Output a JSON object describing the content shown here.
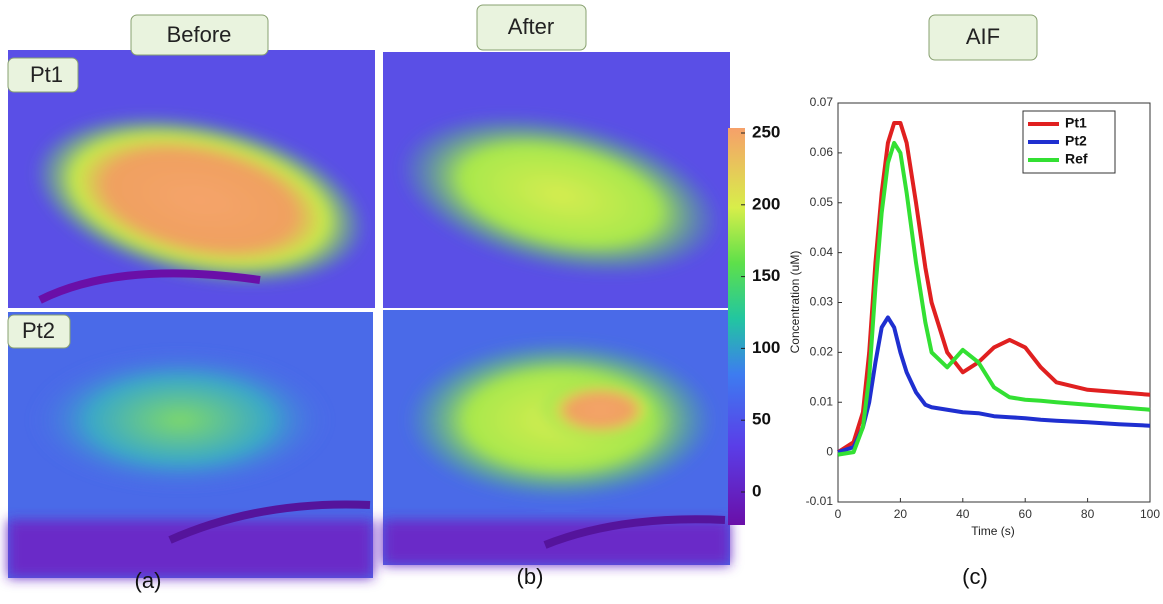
{
  "headers": {
    "before": "Before",
    "after": "After",
    "aif": "AIF"
  },
  "rows": [
    "Pt1",
    "Pt2"
  ],
  "colorbar": {
    "ticks": [
      0,
      50,
      100,
      150,
      200,
      250
    ]
  },
  "captions": [
    "(a)",
    "(b)",
    "(c)"
  ],
  "chart_data": {
    "type": "line",
    "x_label": "Time (s)",
    "y_label": "Concentration (uM)",
    "x": [
      0,
      5,
      8,
      10,
      12,
      14,
      16,
      18,
      20,
      22,
      25,
      28,
      30,
      35,
      40,
      45,
      50,
      55,
      60,
      65,
      70,
      80,
      90,
      100
    ],
    "series": [
      {
        "name": "Pt1",
        "color": "#e02020",
        "values": [
          0,
          0.002,
          0.008,
          0.02,
          0.038,
          0.052,
          0.062,
          0.066,
          0.066,
          0.062,
          0.05,
          0.037,
          0.03,
          0.02,
          0.016,
          0.018,
          0.021,
          0.0225,
          0.021,
          0.017,
          0.014,
          0.0125,
          0.012,
          0.0115
        ]
      },
      {
        "name": "Pt2",
        "color": "#1f2fd0",
        "values": [
          0,
          0.001,
          0.005,
          0.01,
          0.018,
          0.025,
          0.027,
          0.025,
          0.02,
          0.016,
          0.012,
          0.0095,
          0.009,
          0.0085,
          0.008,
          0.0078,
          0.0072,
          0.007,
          0.0068,
          0.0065,
          0.0063,
          0.006,
          0.0056,
          0.0053
        ]
      },
      {
        "name": "Ref",
        "color": "#33e033",
        "values": [
          -0.0005,
          0,
          0.005,
          0.015,
          0.033,
          0.048,
          0.058,
          0.062,
          0.06,
          0.052,
          0.038,
          0.026,
          0.02,
          0.017,
          0.0205,
          0.018,
          0.013,
          0.011,
          0.0105,
          0.0103,
          0.01,
          0.0095,
          0.009,
          0.0085
        ]
      }
    ],
    "xlim": [
      0,
      100
    ],
    "xticks": [
      0,
      20,
      40,
      60,
      80,
      100
    ],
    "ylim": [
      -0.01,
      0.07
    ],
    "yticks": [
      -0.01,
      0,
      0.01,
      0.02,
      0.03,
      0.04,
      0.05,
      0.06,
      0.07
    ],
    "legend": "upper right"
  }
}
